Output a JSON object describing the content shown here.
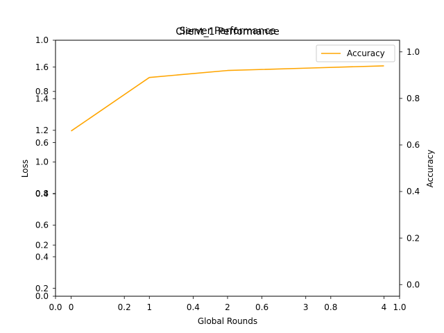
{
  "chart_data": {
    "type": "line",
    "titles": [
      "Server Performance",
      "Client_1 Performance"
    ],
    "xlabel": "Global Rounds",
    "ylabel_left": "Loss",
    "ylabel_right": "Accuracy",
    "x_ticks": [
      "0",
      "1",
      "2",
      "3",
      "4"
    ],
    "x_ticks_placeholder": [
      "0.0",
      "0.2",
      "0.4",
      "0.6",
      "0.8",
      "1.0"
    ],
    "y_ticks_placeholder": [
      "0.0",
      "0.2",
      "0.4",
      "0.6",
      "0.8",
      "1.0"
    ],
    "y_ticks_loss": [
      "0.2",
      "0.4",
      "0.6",
      "0.8",
      "1.0",
      "1.2",
      "1.4",
      "1.6"
    ],
    "y_ticks_accuracy": [
      "0.0",
      "0.2",
      "0.4",
      "0.6",
      "0.8",
      "1.0"
    ],
    "xlim": [
      -0.2,
      4.2
    ],
    "ylim_loss": [
      0.15,
      1.77
    ],
    "ylim_accuracy": [
      -0.05,
      1.05
    ],
    "legend_position": "top-right",
    "series": [
      {
        "name": "Accuracy",
        "axis": "right",
        "color": "#ffa500",
        "x": [
          0,
          1,
          2,
          3,
          4
        ],
        "y": [
          0.66,
          0.89,
          0.92,
          0.93,
          0.94
        ]
      }
    ]
  }
}
